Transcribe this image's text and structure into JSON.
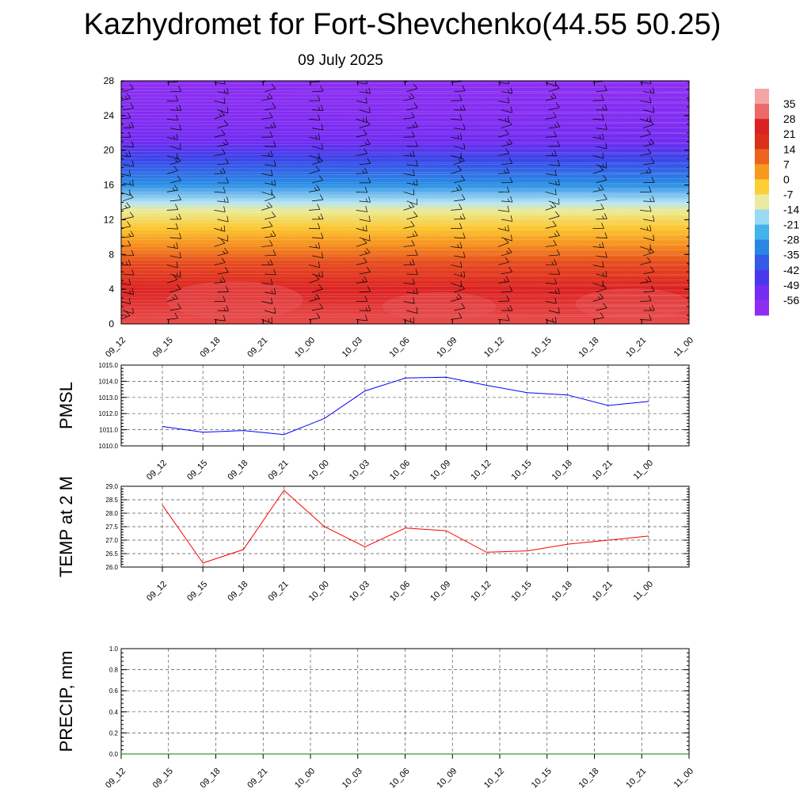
{
  "header": {
    "title": "Kazhydromet for Fort-Shevchenko(44.55 50.25)",
    "date": "09 July 2025"
  },
  "chart_data": [
    {
      "type": "heatmap",
      "description": "Time-height cross-section of temperature with wind barbs",
      "x_ticks": [
        "09_12",
        "09_15",
        "09_18",
        "09_21",
        "10_00",
        "10_03",
        "10_06",
        "10_09",
        "10_12",
        "10_15",
        "10_18",
        "10_21",
        "11_00"
      ],
      "y_ticks": [
        "0",
        "4",
        "8",
        "12",
        "16",
        "20",
        "24",
        "28"
      ],
      "ylim": [
        0,
        28
      ],
      "colorbar": {
        "labels": [
          "35",
          "28",
          "21",
          "14",
          "7",
          "0",
          "-7",
          "-14",
          "-21",
          "-28",
          "-35",
          "-42",
          "-49",
          "-56"
        ],
        "colors": [
          "#f4a6a6",
          "#e52a2a",
          "#d01818",
          "#e64a1e",
          "#f37b1c",
          "#fbb722",
          "#fde848",
          "#d6eef7",
          "#5cc8ef",
          "#279de6",
          "#2d6fe4",
          "#3a44e8",
          "#5a2bf0",
          "#8e2ef2"
        ]
      },
      "temperature_profile": [
        {
          "height": 0,
          "temp": 30
        },
        {
          "height": 4,
          "temp": 25
        },
        {
          "height": 7,
          "temp": 14
        },
        {
          "height": 9,
          "temp": 5
        },
        {
          "height": 11,
          "temp": -2
        },
        {
          "height": 13,
          "temp": -10
        },
        {
          "height": 14,
          "temp": -16
        },
        {
          "height": 16,
          "temp": -30
        },
        {
          "height": 19,
          "temp": -42
        },
        {
          "height": 21,
          "temp": -52
        },
        {
          "height": 23,
          "temp": -54
        },
        {
          "height": 28,
          "temp": -56
        }
      ]
    },
    {
      "type": "line",
      "ylabel": "PMSL",
      "categories": [
        "09_12",
        "09_15",
        "09_18",
        "09_21",
        "10_00",
        "10_03",
        "10_06",
        "10_09",
        "10_12",
        "10_15",
        "10_18",
        "10_21",
        "11_00"
      ],
      "y_ticks": [
        "1010.0",
        "1011.0",
        "1012.0",
        "1013.0",
        "1014.0",
        "1015.0"
      ],
      "ylim": [
        1010,
        1015
      ],
      "series": [
        {
          "values": [
            1011.2,
            1010.85,
            1010.95,
            1010.7,
            1011.7,
            1013.4,
            1014.2,
            1014.25,
            1013.75,
            1013.3,
            1013.15,
            1012.5,
            1012.75
          ]
        }
      ],
      "color": "#0000ff"
    },
    {
      "type": "line",
      "ylabel": "TEMP at 2 M",
      "categories": [
        "09_12",
        "09_15",
        "09_18",
        "09_21",
        "10_00",
        "10_03",
        "10_06",
        "10_09",
        "10_12",
        "10_15",
        "10_18",
        "10_21",
        "11_00"
      ],
      "y_ticks": [
        "26.0",
        "26.5",
        "27.0",
        "27.5",
        "28.0",
        "28.5",
        "29.0"
      ],
      "ylim": [
        26,
        29
      ],
      "series": [
        {
          "values": [
            28.3,
            26.15,
            26.65,
            28.85,
            27.5,
            26.75,
            27.45,
            27.35,
            26.55,
            26.6,
            26.85,
            27.0,
            27.15
          ]
        }
      ],
      "color": "#ff0000"
    },
    {
      "type": "line",
      "ylabel": "PRECIP, mm",
      "categories": [
        "09_12",
        "09_15",
        "09_18",
        "09_21",
        "10_00",
        "10_03",
        "10_06",
        "10_09",
        "10_12",
        "10_15",
        "10_18",
        "10_21",
        "11_00"
      ],
      "y_ticks": [
        "0.0",
        "0.2",
        "0.4",
        "0.6",
        "0.8",
        "1.0"
      ],
      "ylim": [
        0,
        1
      ],
      "series": [
        {
          "values": [
            0,
            0,
            0,
            0,
            0,
            0,
            0,
            0,
            0,
            0,
            0,
            0,
            0
          ]
        }
      ],
      "color": "#008000"
    }
  ]
}
